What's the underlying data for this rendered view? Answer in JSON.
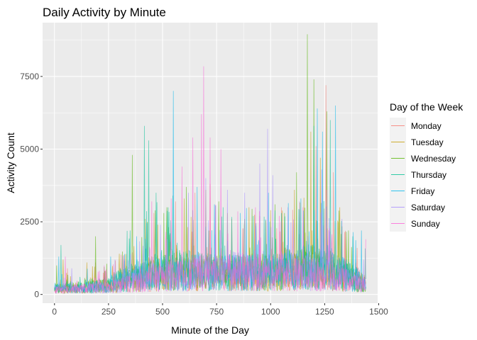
{
  "chart_data": {
    "type": "line",
    "title": "Daily Activity by Minute",
    "xlabel": "Minute of the Day",
    "ylabel": "Activity Count",
    "xlim": [
      -55,
      1495
    ],
    "ylim": [
      -300,
      9350
    ],
    "x_ticks": [
      0,
      250,
      500,
      750,
      1000,
      1250,
      1500
    ],
    "x_tick_labels": [
      "0",
      "250",
      "500",
      "750",
      "1000",
      "1250",
      "1500"
    ],
    "y_ticks": [
      0,
      2500,
      5000,
      7500
    ],
    "y_tick_labels": [
      "0",
      "2500",
      "5000",
      "7500"
    ],
    "grid": true,
    "legend": {
      "title": "Day of the Week",
      "placement": "right"
    },
    "series": [
      {
        "name": "Monday",
        "color": "#F8766D",
        "baseline": [
          [
            0,
            150
          ],
          [
            250,
            250
          ],
          [
            350,
            450
          ],
          [
            500,
            650
          ],
          [
            750,
            700
          ],
          [
            1000,
            650
          ],
          [
            1150,
            800
          ],
          [
            1250,
            750
          ],
          [
            1440,
            350
          ]
        ],
        "peaks": [
          [
            60,
            900
          ],
          [
            190,
            1100
          ],
          [
            320,
            1350
          ],
          [
            460,
            2800
          ],
          [
            560,
            3200
          ],
          [
            650,
            3500
          ],
          [
            720,
            3800
          ],
          [
            820,
            2600
          ],
          [
            950,
            2700
          ],
          [
            1050,
            3000
          ],
          [
            1210,
            5100
          ],
          [
            1255,
            7200
          ],
          [
            1290,
            4200
          ],
          [
            1400,
            1600
          ]
        ]
      },
      {
        "name": "Tuesday",
        "color": "#C49A00",
        "baseline": [
          [
            0,
            180
          ],
          [
            250,
            280
          ],
          [
            350,
            500
          ],
          [
            500,
            700
          ],
          [
            750,
            750
          ],
          [
            1000,
            700
          ],
          [
            1150,
            850
          ],
          [
            1250,
            800
          ],
          [
            1440,
            380
          ]
        ],
        "peaks": [
          [
            40,
            1200
          ],
          [
            150,
            1100
          ],
          [
            300,
            1400
          ],
          [
            420,
            2600
          ],
          [
            600,
            3300
          ],
          [
            700,
            3600
          ],
          [
            800,
            2800
          ],
          [
            900,
            3000
          ],
          [
            1000,
            2900
          ],
          [
            1110,
            3600
          ],
          [
            1185,
            5600
          ],
          [
            1230,
            4700
          ],
          [
            1320,
            3000
          ]
        ]
      },
      {
        "name": "Wednesday",
        "color": "#53B400",
        "baseline": [
          [
            0,
            200
          ],
          [
            250,
            300
          ],
          [
            350,
            550
          ],
          [
            500,
            800
          ],
          [
            750,
            800
          ],
          [
            1000,
            750
          ],
          [
            1150,
            950
          ],
          [
            1250,
            900
          ],
          [
            1440,
            400
          ]
        ],
        "peaks": [
          [
            10,
            1000
          ],
          [
            190,
            2000
          ],
          [
            360,
            4800
          ],
          [
            430,
            2500
          ],
          [
            520,
            3000
          ],
          [
            610,
            3700
          ],
          [
            760,
            3200
          ],
          [
            880,
            2600
          ],
          [
            1020,
            3100
          ],
          [
            1120,
            4200
          ],
          [
            1170,
            8950
          ],
          [
            1200,
            7400
          ],
          [
            1260,
            6300
          ],
          [
            1360,
            2200
          ]
        ]
      },
      {
        "name": "Thursday",
        "color": "#00C094",
        "baseline": [
          [
            0,
            220
          ],
          [
            250,
            320
          ],
          [
            350,
            600
          ],
          [
            500,
            850
          ],
          [
            750,
            800
          ],
          [
            1000,
            750
          ],
          [
            1150,
            900
          ],
          [
            1250,
            850
          ],
          [
            1440,
            420
          ]
        ],
        "peaks": [
          [
            30,
            1700
          ],
          [
            350,
            2200
          ],
          [
            415,
            5800
          ],
          [
            435,
            5300
          ],
          [
            470,
            3500
          ],
          [
            548,
            3400
          ],
          [
            640,
            2900
          ],
          [
            780,
            3000
          ],
          [
            920,
            2700
          ],
          [
            1050,
            2800
          ],
          [
            1200,
            5800
          ],
          [
            1275,
            6000
          ],
          [
            1380,
            2000
          ]
        ]
      },
      {
        "name": "Friday",
        "color": "#00B6EB",
        "baseline": [
          [
            0,
            170
          ],
          [
            250,
            290
          ],
          [
            350,
            520
          ],
          [
            500,
            750
          ],
          [
            750,
            780
          ],
          [
            1000,
            720
          ],
          [
            1150,
            900
          ],
          [
            1250,
            1000
          ],
          [
            1440,
            360
          ]
        ],
        "peaks": [
          [
            20,
            1300
          ],
          [
            260,
            1300
          ],
          [
            380,
            2000
          ],
          [
            550,
            7000
          ],
          [
            660,
            3700
          ],
          [
            740,
            3100
          ],
          [
            860,
            2800
          ],
          [
            990,
            3500
          ],
          [
            1140,
            3300
          ],
          [
            1215,
            6400
          ],
          [
            1240,
            5600
          ],
          [
            1300,
            6500
          ],
          [
            1420,
            2200
          ]
        ]
      },
      {
        "name": "Saturday",
        "color": "#A58AFF",
        "baseline": [
          [
            0,
            160
          ],
          [
            250,
            250
          ],
          [
            350,
            400
          ],
          [
            500,
            650
          ],
          [
            750,
            800
          ],
          [
            1000,
            850
          ],
          [
            1150,
            800
          ],
          [
            1250,
            700
          ],
          [
            1440,
            330
          ]
        ],
        "peaks": [
          [
            80,
            900
          ],
          [
            280,
            1200
          ],
          [
            490,
            2400
          ],
          [
            620,
            3500
          ],
          [
            700,
            4000
          ],
          [
            800,
            3600
          ],
          [
            880,
            3500
          ],
          [
            950,
            4500
          ],
          [
            985,
            5700
          ],
          [
            1010,
            4100
          ],
          [
            1080,
            3000
          ],
          [
            1235,
            4300
          ],
          [
            1330,
            2600
          ]
        ]
      },
      {
        "name": "Sunday",
        "color": "#FB61D7",
        "baseline": [
          [
            0,
            150
          ],
          [
            250,
            240
          ],
          [
            350,
            380
          ],
          [
            500,
            600
          ],
          [
            750,
            780
          ],
          [
            1000,
            700
          ],
          [
            1150,
            700
          ],
          [
            1250,
            650
          ],
          [
            1440,
            320
          ]
        ],
        "peaks": [
          [
            50,
            1300
          ],
          [
            230,
            1000
          ],
          [
            450,
            3200
          ],
          [
            540,
            3300
          ],
          [
            590,
            4400
          ],
          [
            640,
            5400
          ],
          [
            680,
            6200
          ],
          [
            690,
            7850
          ],
          [
            720,
            5400
          ],
          [
            770,
            5000
          ],
          [
            930,
            3000
          ],
          [
            1040,
            2700
          ],
          [
            1150,
            3000
          ],
          [
            1260,
            3600
          ],
          [
            1440,
            1900
          ]
        ]
      }
    ]
  }
}
